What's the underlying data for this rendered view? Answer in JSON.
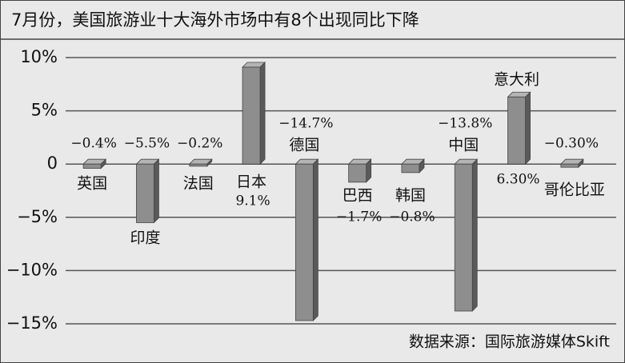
{
  "chart_data": {
    "type": "bar",
    "title": "7月份，美国旅游业十大海外市场中有8个出现同比下降",
    "source": "数据来源：国际旅游媒体Skift",
    "categories": [
      "英国",
      "印度",
      "法国",
      "日本",
      "德国",
      "巴西",
      "韩国",
      "中国",
      "意大利",
      "哥伦比亚"
    ],
    "values": [
      -0.4,
      -5.5,
      -0.2,
      9.1,
      -14.7,
      -1.7,
      -0.8,
      -13.8,
      6.3,
      -0.3
    ],
    "value_labels": [
      "−0.4%",
      "−5.5%",
      "−0.2%",
      "9.1%",
      "−14.7%",
      "−1.7%",
      "−0.8%",
      "−13.8%",
      "6.30%",
      "−0.30%"
    ],
    "color": "#8e8e8e",
    "ylim": [
      -15,
      10
    ],
    "yticks": [
      {
        "value": 10,
        "label": "10%"
      },
      {
        "value": 5,
        "label": "5%"
      },
      0,
      {
        "value": -5,
        "label": "−5%"
      },
      {
        "value": -10,
        "label": "−10%"
      },
      {
        "value": -15,
        "label": "−15%"
      }
    ],
    "grid": true
  }
}
